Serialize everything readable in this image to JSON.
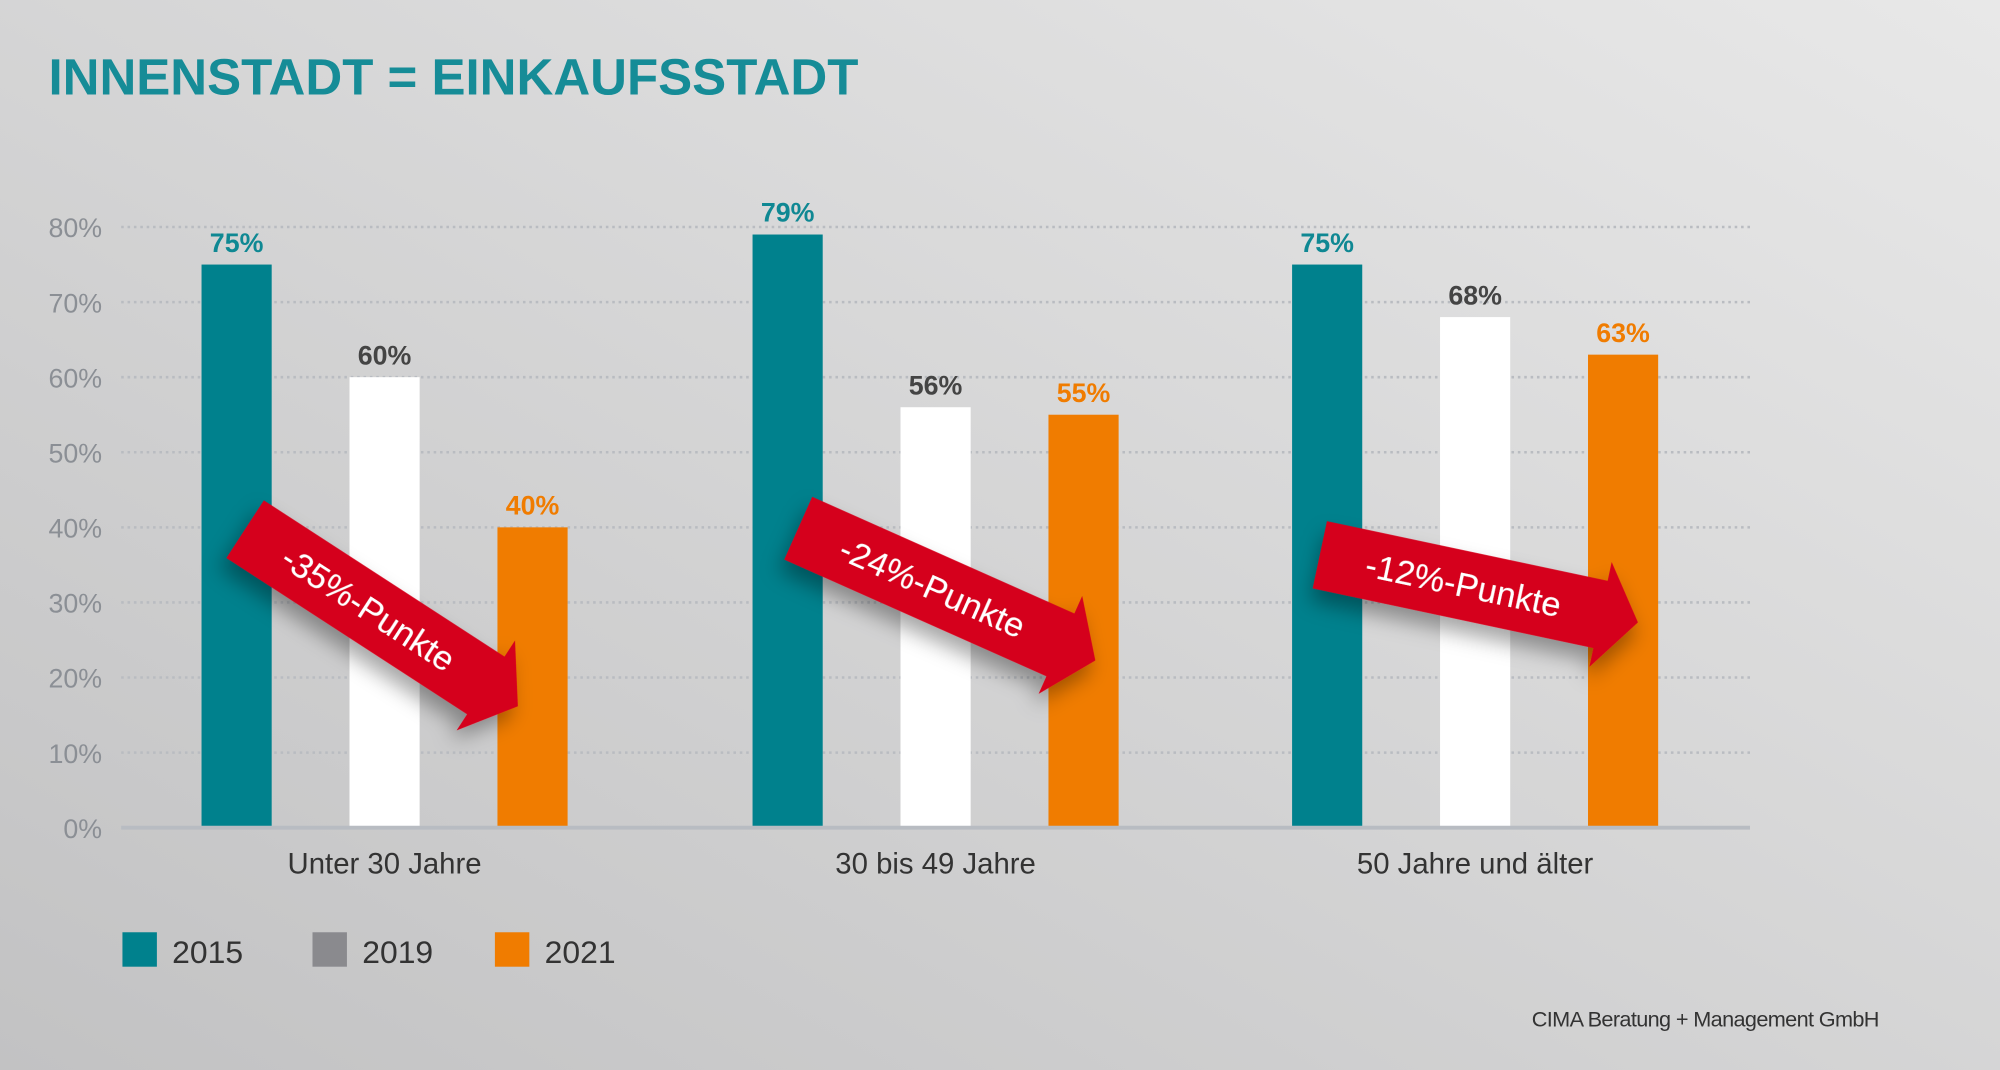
{
  "chart_data": {
    "type": "bar",
    "title": "INNENSTADT = EINKAUFSSTADT",
    "categories": [
      "Unter 30 Jahre",
      "30 bis 49 Jahre",
      "50 Jahre und älter"
    ],
    "series": [
      {
        "name": "2015",
        "color": "#00818d",
        "label_color": "#0f8893",
        "values": [
          75,
          79,
          75
        ]
      },
      {
        "name": "2019",
        "color": "#ffffff",
        "legend_color": "#8a8a8e",
        "label_color": "#444444",
        "values": [
          60,
          56,
          68
        ]
      },
      {
        "name": "2021",
        "color": "#f07c00",
        "label_color": "#f07c00",
        "values": [
          40,
          55,
          63
        ]
      }
    ],
    "value_labels": [
      [
        "75%",
        "60%",
        "40%"
      ],
      [
        "79%",
        "56%",
        "55%"
      ],
      [
        "75%",
        "68%",
        "63%"
      ]
    ],
    "yticks": [
      "0%",
      "10%",
      "20%",
      "30%",
      "40%",
      "50%",
      "60%",
      "70%",
      "80%"
    ],
    "ylim": [
      0,
      80
    ],
    "grid": true,
    "legend_position": "bottom-left",
    "annotations": [
      "-35%-Punkte",
      "-24%-Punkte",
      "-12%-Punkte"
    ],
    "annotation_color": "#d5001c",
    "source": "CIMA Beratung + Management GmbH"
  }
}
